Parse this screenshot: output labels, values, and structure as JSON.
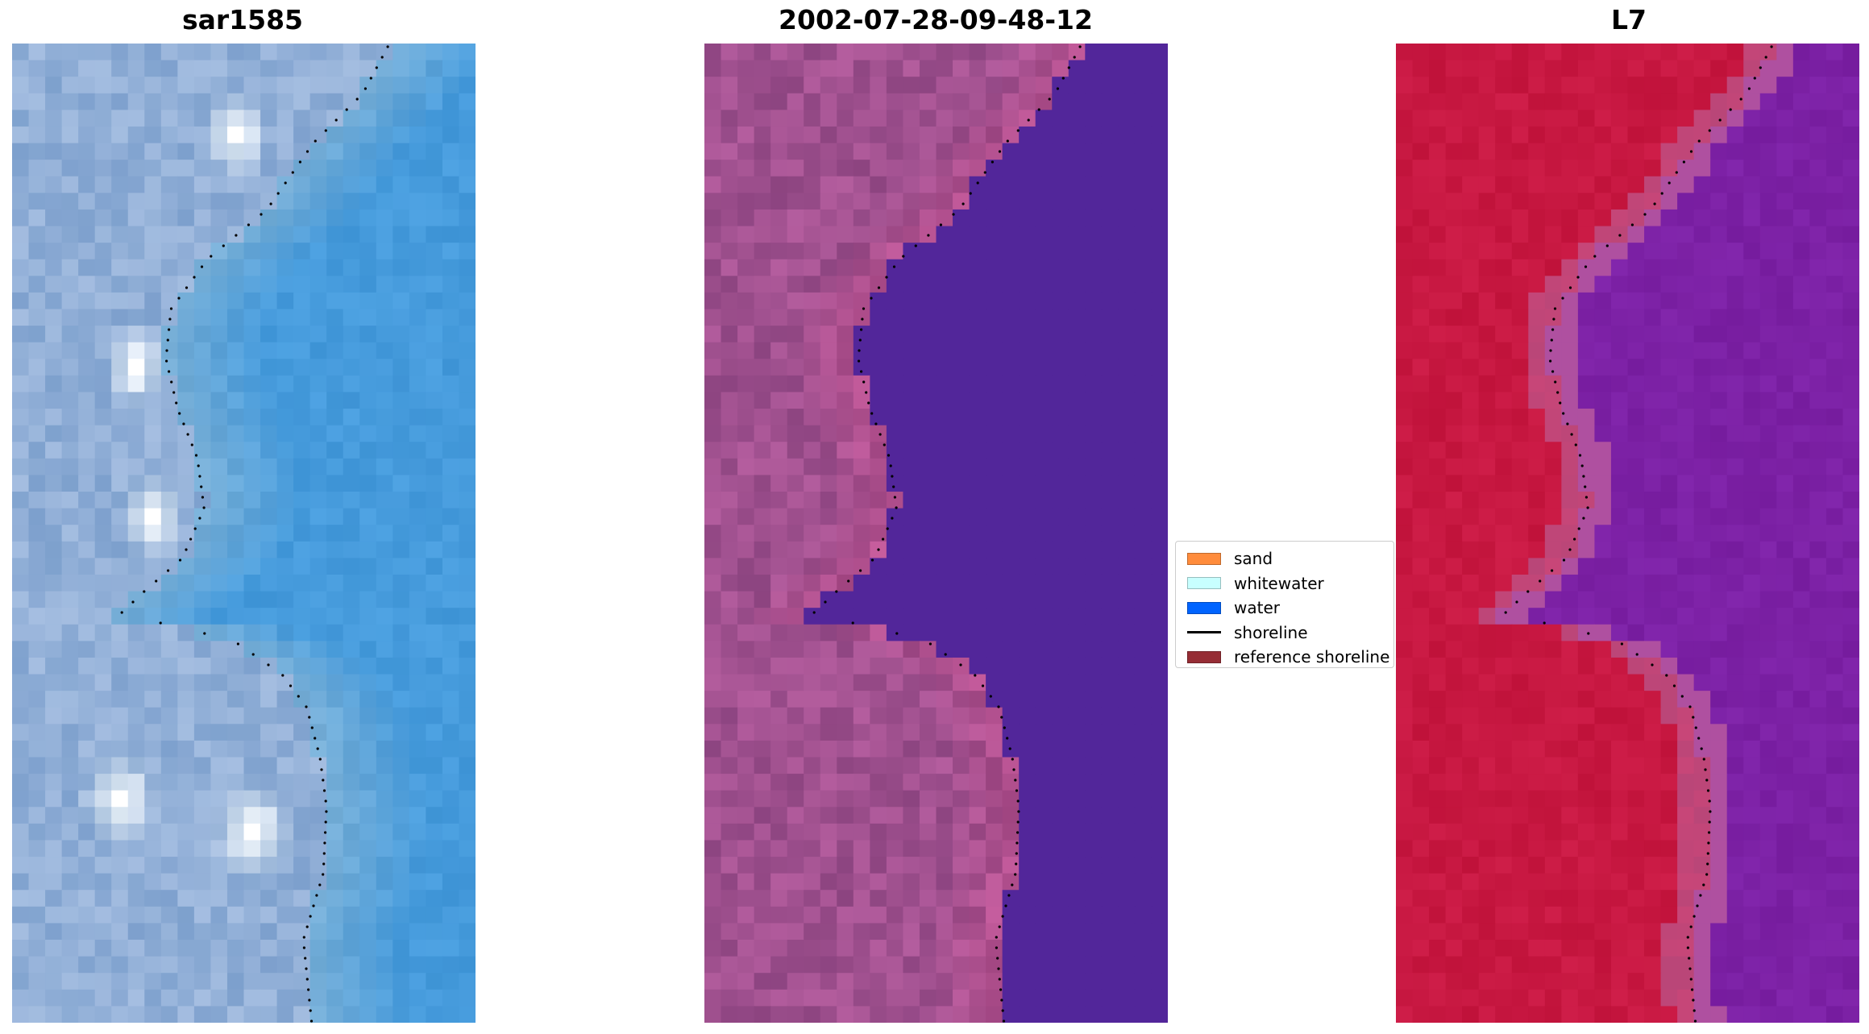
{
  "panels": [
    {
      "title": "sar1585",
      "title_color": "#000000",
      "scheme": "rgb"
    },
    {
      "title": "2002-07-28-09-48-12",
      "title_color": "#000000",
      "scheme": "classified"
    },
    {
      "title": "L7",
      "title_color": "#000000",
      "scheme": "index"
    }
  ],
  "legend": {
    "placement": "center-right",
    "entries": [
      {
        "label": "sand",
        "type": "patch",
        "color": "#ff8c3c"
      },
      {
        "label": "whitewater",
        "type": "patch",
        "color": "#c8ffff"
      },
      {
        "label": "water",
        "type": "patch",
        "color": "#0064ff"
      },
      {
        "label": "shoreline",
        "type": "line",
        "color": "#000000"
      },
      {
        "label": "reference shoreline",
        "type": "patch",
        "color": "#962d35"
      }
    ]
  },
  "colors": {
    "sea_rgb": "#4a90cc",
    "land_rgb": "#8aa6cc",
    "classified_water": "#52269a",
    "classified_land": "#944a84",
    "index_land": "#c0143c",
    "index_water": "#7a1c9c",
    "shoreline_dots": "#000000"
  }
}
